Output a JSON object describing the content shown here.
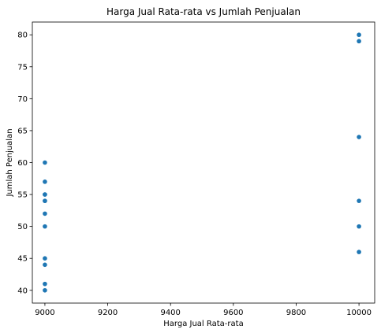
{
  "chart_data": {
    "type": "scatter",
    "title": "Harga Jual Rata-rata vs Jumlah Penjualan",
    "xlabel": "Harga Jual Rata-rata",
    "ylabel": "Jumlah Penjualan",
    "xlim": [
      8960,
      10050
    ],
    "ylim": [
      38.0,
      82.0
    ],
    "xticks": [
      9000,
      9200,
      9400,
      9600,
      9800,
      10000
    ],
    "yticks": [
      40,
      45,
      50,
      55,
      60,
      65,
      70,
      75,
      80
    ],
    "grid": false,
    "marker_color": "#1f77b4",
    "series": [
      {
        "x": [
          9000,
          9000,
          9000,
          9000,
          9000,
          9000,
          9000,
          9000,
          9000,
          9000,
          9000,
          9000,
          10000,
          10000,
          10000,
          10000,
          10000,
          10000
        ],
        "y": [
          60,
          57,
          55,
          54,
          52,
          50,
          45,
          44,
          41,
          40,
          55,
          54,
          80,
          79,
          64,
          54,
          50,
          46
        ]
      }
    ]
  }
}
